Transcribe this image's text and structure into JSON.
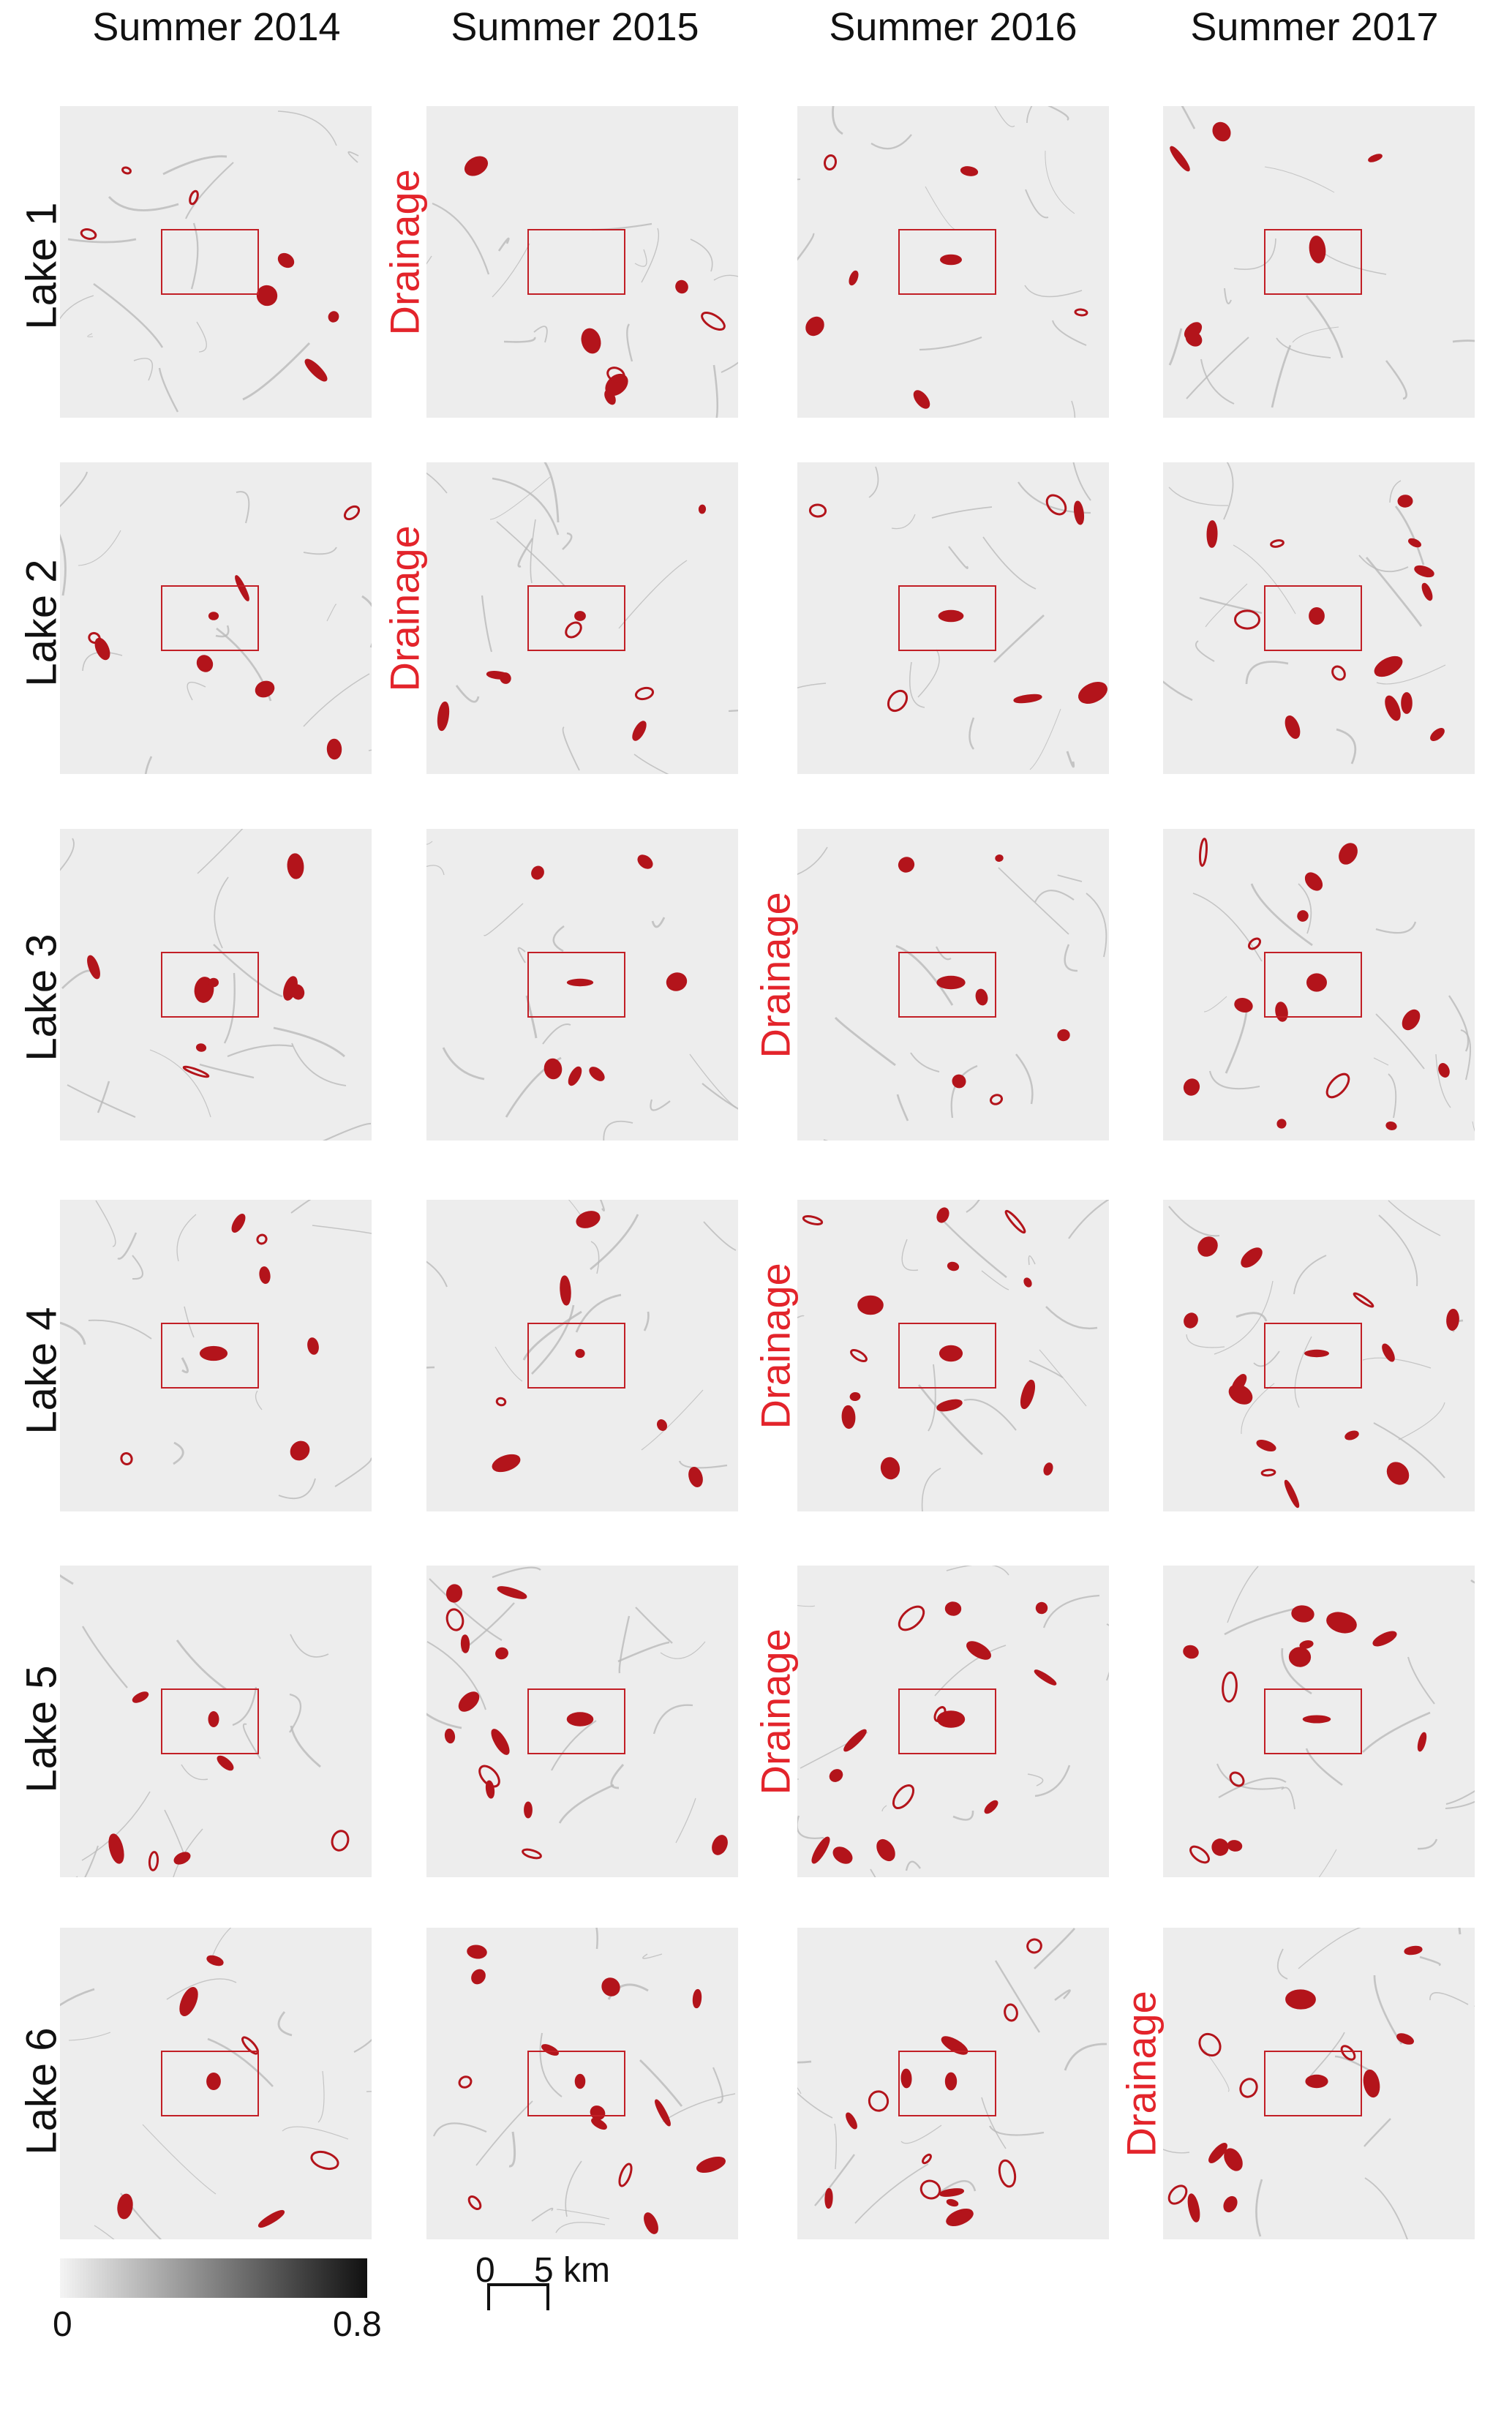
{
  "columns": [
    "Summer 2014",
    "Summer 2015",
    "Summer 2016",
    "Summer 2017"
  ],
  "rows": [
    "Lake 1",
    "Lake 2",
    "Lake 3",
    "Lake 4",
    "Lake 5",
    "Lake 6"
  ],
  "drainage_label": "Drainage",
  "drainage_events": [
    {
      "row": 0,
      "col": 1
    },
    {
      "row": 1,
      "col": 1
    },
    {
      "row": 2,
      "col": 2
    },
    {
      "row": 3,
      "col": 2
    },
    {
      "row": 4,
      "col": 2
    },
    {
      "row": 5,
      "col": 3
    }
  ],
  "colorbar": {
    "min_label": "0",
    "max_label": "0.8",
    "min": 0,
    "max": 0.8,
    "colors": [
      "#f4f4f4",
      "#111111"
    ]
  },
  "scale": {
    "start_label": "0",
    "end_label": "5 km"
  },
  "colors": {
    "lake": "#b3141b",
    "roi": "#c21f26",
    "drainage_text": "#e3242b"
  }
}
